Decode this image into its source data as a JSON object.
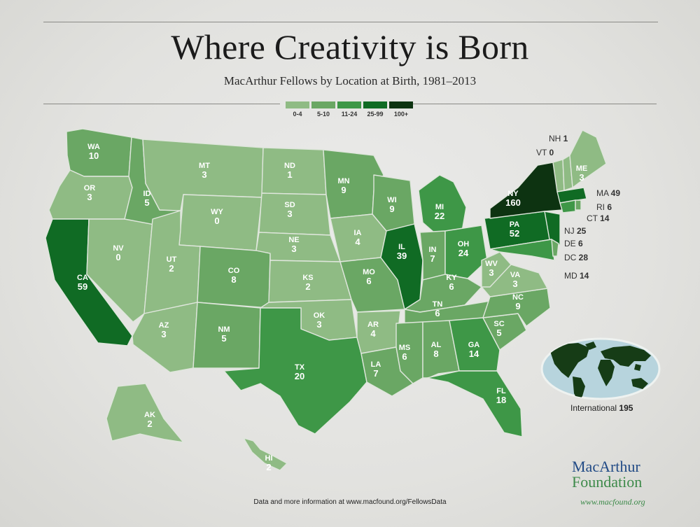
{
  "title": "Where Creativity is Born",
  "subtitle": "MacArthur Fellows by Location at Birth, 1981–2013",
  "legend": [
    {
      "label": "0-4",
      "color": "#8fbb84"
    },
    {
      "label": "5-10",
      "color": "#6aa764"
    },
    {
      "label": "11-24",
      "color": "#3e9747"
    },
    {
      "label": "25-99",
      "color": "#106b24"
    },
    {
      "label": "100+",
      "color": "#0d3311"
    }
  ],
  "states": [
    {
      "abbr": "WA",
      "value": 10
    },
    {
      "abbr": "OR",
      "value": 3
    },
    {
      "abbr": "CA",
      "value": 59
    },
    {
      "abbr": "NV",
      "value": 0
    },
    {
      "abbr": "ID",
      "value": 5
    },
    {
      "abbr": "MT",
      "value": 3
    },
    {
      "abbr": "WY",
      "value": 0
    },
    {
      "abbr": "UT",
      "value": 2
    },
    {
      "abbr": "AZ",
      "value": 3
    },
    {
      "abbr": "CO",
      "value": 8
    },
    {
      "abbr": "NM",
      "value": 5
    },
    {
      "abbr": "ND",
      "value": 1
    },
    {
      "abbr": "SD",
      "value": 3
    },
    {
      "abbr": "NE",
      "value": 3
    },
    {
      "abbr": "KS",
      "value": 2
    },
    {
      "abbr": "OK",
      "value": 3
    },
    {
      "abbr": "TX",
      "value": 20
    },
    {
      "abbr": "MN",
      "value": 9
    },
    {
      "abbr": "IA",
      "value": 4
    },
    {
      "abbr": "MO",
      "value": 6
    },
    {
      "abbr": "AR",
      "value": 4
    },
    {
      "abbr": "LA",
      "value": 7
    },
    {
      "abbr": "WI",
      "value": 9
    },
    {
      "abbr": "IL",
      "value": 39
    },
    {
      "abbr": "MI",
      "value": 22
    },
    {
      "abbr": "IN",
      "value": 7
    },
    {
      "abbr": "OH",
      "value": 24
    },
    {
      "abbr": "KY",
      "value": 6
    },
    {
      "abbr": "TN",
      "value": 6
    },
    {
      "abbr": "MS",
      "value": 6
    },
    {
      "abbr": "AL",
      "value": 8
    },
    {
      "abbr": "GA",
      "value": 14
    },
    {
      "abbr": "FL",
      "value": 18
    },
    {
      "abbr": "SC",
      "value": 5
    },
    {
      "abbr": "NC",
      "value": 9
    },
    {
      "abbr": "VA",
      "value": 3
    },
    {
      "abbr": "WV",
      "value": 3
    },
    {
      "abbr": "PA",
      "value": 52
    },
    {
      "abbr": "NY",
      "value": 160
    },
    {
      "abbr": "ME",
      "value": 3
    },
    {
      "abbr": "AK",
      "value": 2
    },
    {
      "abbr": "HI",
      "value": 2
    }
  ],
  "callouts": [
    {
      "abbr": "NH",
      "value": 1
    },
    {
      "abbr": "VT",
      "value": 0
    },
    {
      "abbr": "MA",
      "value": 49
    },
    {
      "abbr": "RI",
      "value": 6
    },
    {
      "abbr": "CT",
      "value": 14
    },
    {
      "abbr": "NJ",
      "value": 25
    },
    {
      "abbr": "DE",
      "value": 6
    },
    {
      "abbr": "DC",
      "value": 28
    },
    {
      "abbr": "MD",
      "value": 14
    }
  ],
  "international": {
    "label": "International",
    "value": 195
  },
  "footer": "Data and more information at www.macfound.org/FellowsData",
  "brand": {
    "line1": "MacArthur",
    "line2": "Foundation",
    "url": "www.macfound.org"
  },
  "colors": {
    "water": "#b7d4dd",
    "land_dark": "#163c16"
  }
}
